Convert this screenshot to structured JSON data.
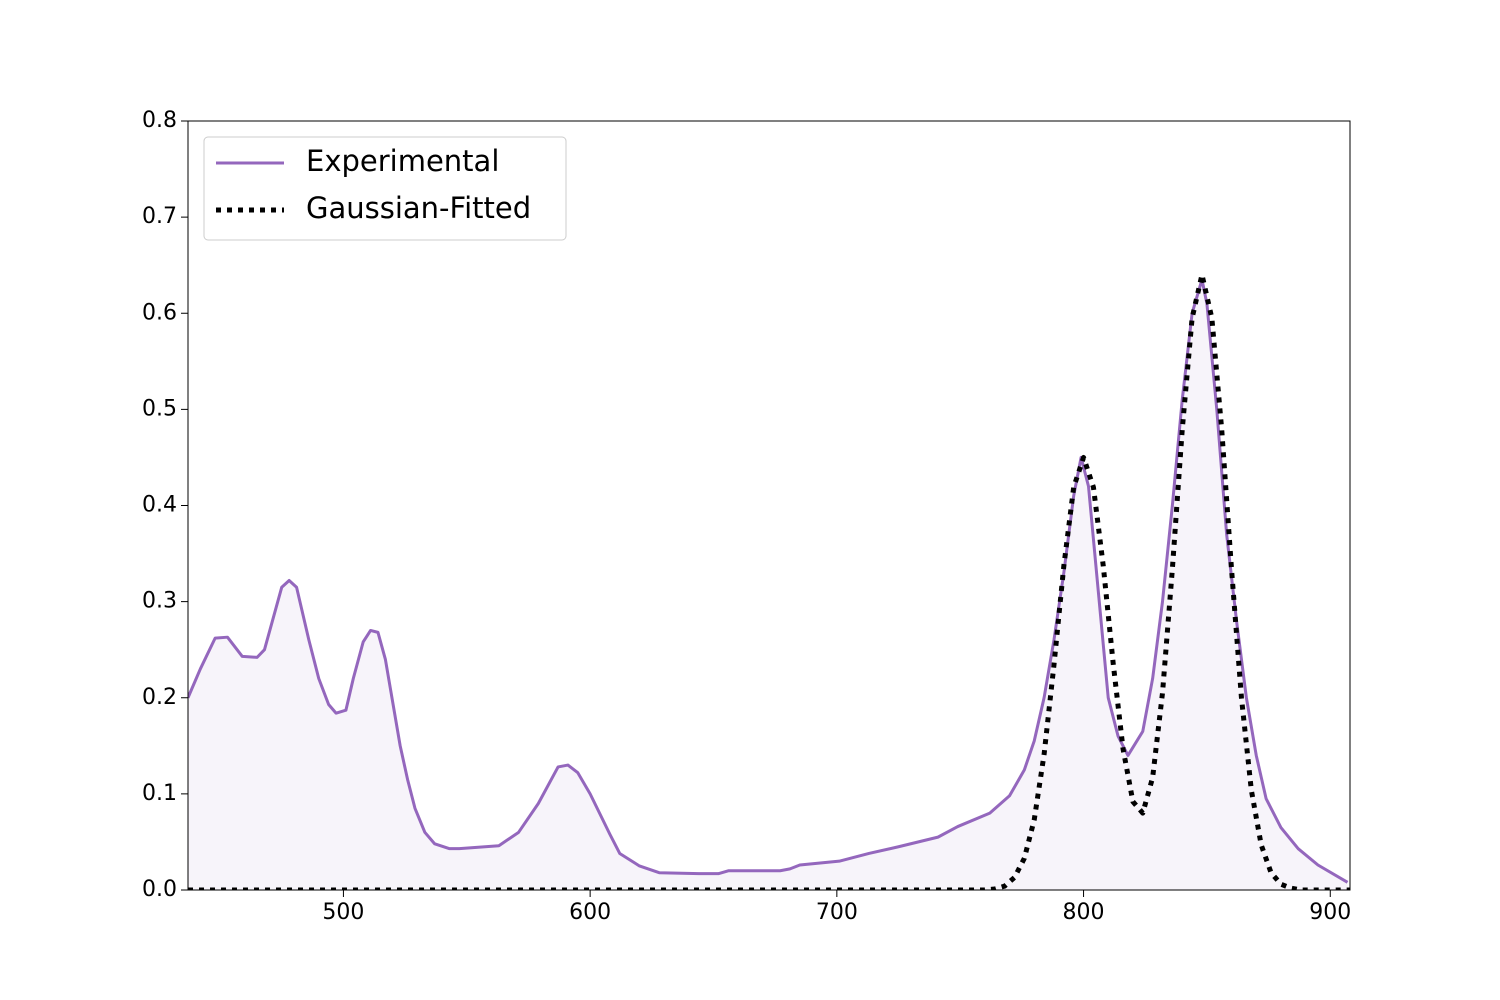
{
  "chart_data": {
    "type": "line",
    "series": [
      {
        "name": "Experimental",
        "color": "#9467bd",
        "style": "solid",
        "fill": "#f7f4fa",
        "x": [
          437,
          442,
          448,
          453,
          459,
          465,
          468,
          475,
          478,
          481,
          486,
          490,
          494,
          497,
          501,
          504,
          508,
          511,
          514,
          517,
          519,
          523,
          526,
          529,
          533,
          537,
          543,
          547,
          563,
          571,
          579,
          587,
          591,
          595,
          600,
          608,
          612,
          620,
          628,
          644,
          652,
          656,
          677,
          681,
          685,
          701,
          713,
          725,
          741,
          749,
          762,
          770,
          776,
          780,
          784,
          788,
          792,
          796,
          799,
          802,
          806,
          810,
          814,
          818,
          824,
          828,
          832,
          836,
          840,
          844,
          848,
          850,
          854,
          858,
          862,
          866,
          870,
          874,
          880,
          887,
          895,
          907
        ],
        "values": [
          0.2,
          0.23,
          0.262,
          0.263,
          0.243,
          0.242,
          0.25,
          0.315,
          0.322,
          0.315,
          0.26,
          0.22,
          0.193,
          0.184,
          0.187,
          0.22,
          0.258,
          0.27,
          0.268,
          0.24,
          0.21,
          0.15,
          0.115,
          0.085,
          0.06,
          0.048,
          0.043,
          0.043,
          0.046,
          0.06,
          0.09,
          0.128,
          0.13,
          0.122,
          0.1,
          0.058,
          0.038,
          0.025,
          0.018,
          0.017,
          0.017,
          0.02,
          0.02,
          0.022,
          0.026,
          0.03,
          0.038,
          0.045,
          0.055,
          0.066,
          0.08,
          0.098,
          0.125,
          0.155,
          0.2,
          0.26,
          0.33,
          0.41,
          0.45,
          0.42,
          0.31,
          0.2,
          0.16,
          0.14,
          0.165,
          0.22,
          0.3,
          0.4,
          0.51,
          0.6,
          0.635,
          0.61,
          0.5,
          0.37,
          0.28,
          0.2,
          0.14,
          0.095,
          0.065,
          0.043,
          0.026,
          0.008
        ]
      },
      {
        "name": "Gaussian-Fitted",
        "color": "#000000",
        "style": "dotted",
        "x": [
          437,
          760,
          764,
          768,
          772,
          776,
          780,
          784,
          788,
          792,
          796,
          800,
          804,
          808,
          812,
          816,
          820,
          824,
          828,
          832,
          836,
          840,
          844,
          848,
          852,
          856,
          860,
          864,
          868,
          872,
          876,
          880,
          884,
          888,
          908
        ],
        "values": [
          0,
          0,
          0.001,
          0.004,
          0.013,
          0.033,
          0.073,
          0.141,
          0.234,
          0.337,
          0.419,
          0.45,
          0.419,
          0.337,
          0.236,
          0.147,
          0.092,
          0.08,
          0.117,
          0.205,
          0.334,
          0.479,
          0.595,
          0.64,
          0.595,
          0.479,
          0.333,
          0.2,
          0.104,
          0.047,
          0.018,
          0.006,
          0.002,
          0,
          0
        ]
      }
    ],
    "xlim": [
      437,
      908
    ],
    "ylim": [
      0,
      0.8
    ],
    "xticks": [
      500,
      600,
      700,
      800,
      900
    ],
    "yticks": [
      {
        "value": 0,
        "label": "0.0"
      },
      0.1,
      0.2,
      0.3,
      0.4,
      0.5,
      0.6,
      0.7,
      0.8
    ],
    "grid": false,
    "legend": "upper left"
  }
}
